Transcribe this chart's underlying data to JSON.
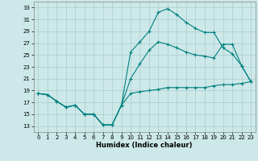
{
  "xlabel": "Humidex (Indice chaleur)",
  "bg_color": "#cce8e8",
  "grid_color": "#aacccc",
  "line_color": "#008080",
  "xlim": [
    -0.5,
    23.5
  ],
  "ylim": [
    12,
    34
  ],
  "yticks": [
    13,
    15,
    17,
    19,
    21,
    23,
    25,
    27,
    29,
    31,
    33
  ],
  "xticks": [
    0,
    1,
    2,
    3,
    4,
    5,
    6,
    7,
    8,
    9,
    10,
    11,
    12,
    13,
    14,
    15,
    16,
    17,
    18,
    19,
    20,
    21,
    22,
    23
  ],
  "series1_x": [
    0,
    1,
    2,
    3,
    4,
    5,
    6,
    7,
    8,
    9,
    10,
    11,
    12,
    13,
    14,
    15,
    16,
    17,
    18,
    19,
    20,
    21,
    22,
    23
  ],
  "series1_y": [
    18.5,
    18.3,
    17.2,
    16.2,
    16.5,
    15.0,
    15.0,
    13.2,
    13.2,
    16.5,
    25.5,
    27.2,
    29.0,
    32.2,
    32.8,
    31.8,
    30.5,
    29.5,
    28.8,
    28.8,
    26.2,
    25.2,
    23.2,
    20.5
  ],
  "series2_x": [
    0,
    1,
    2,
    3,
    4,
    5,
    6,
    7,
    8,
    9,
    10,
    11,
    12,
    13,
    14,
    15,
    16,
    17,
    18,
    19,
    20,
    21,
    22,
    23
  ],
  "series2_y": [
    18.5,
    18.3,
    17.2,
    16.2,
    16.5,
    15.0,
    15.0,
    13.2,
    13.2,
    16.5,
    21.0,
    23.5,
    25.8,
    27.2,
    26.8,
    26.2,
    25.5,
    25.0,
    24.8,
    24.5,
    26.8,
    26.8,
    23.2,
    20.5
  ],
  "series3_x": [
    0,
    1,
    2,
    3,
    4,
    5,
    6,
    7,
    8,
    9,
    10,
    11,
    12,
    13,
    14,
    15,
    16,
    17,
    18,
    19,
    20,
    21,
    22,
    23
  ],
  "series3_y": [
    18.5,
    18.3,
    17.2,
    16.2,
    16.5,
    15.0,
    15.0,
    13.2,
    13.2,
    16.5,
    18.5,
    18.8,
    19.0,
    19.2,
    19.5,
    19.5,
    19.5,
    19.5,
    19.5,
    19.8,
    20.0,
    20.0,
    20.2,
    20.5
  ]
}
